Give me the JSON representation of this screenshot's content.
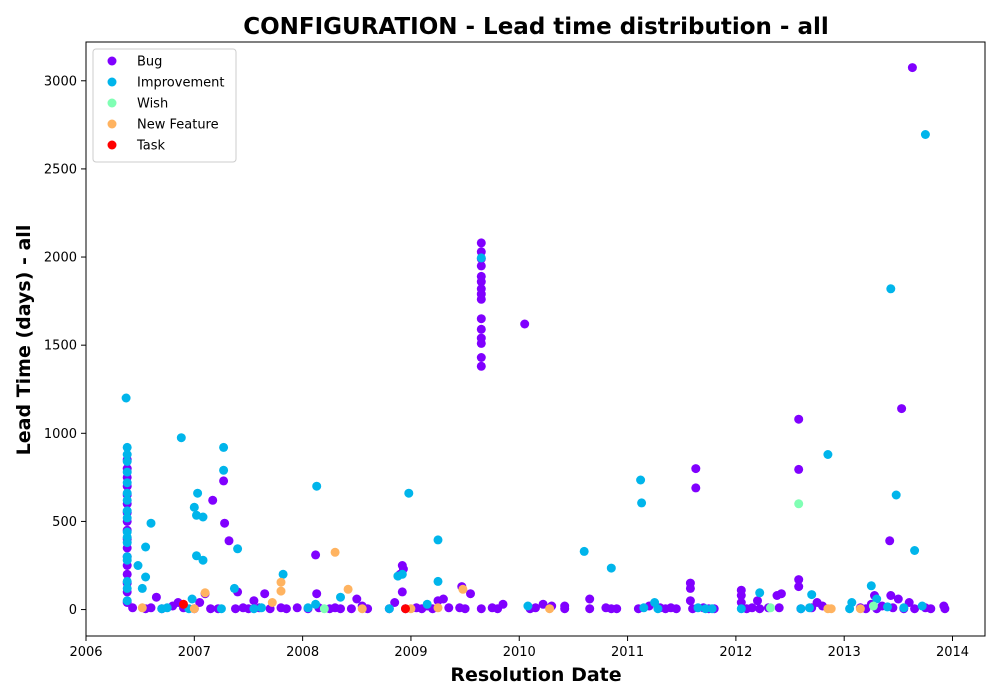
{
  "chart_data": {
    "type": "scatter",
    "title": "CONFIGURATION - Lead time distribution - all",
    "xlabel": "Resolution Date",
    "ylabel": "Lead Time (days) - all",
    "xlim": [
      2006.0,
      2014.3
    ],
    "ylim": [
      -150,
      3220
    ],
    "x_ticks": [
      "2006",
      "2007",
      "2008",
      "2009",
      "2010",
      "2011",
      "2012",
      "2013",
      "2014"
    ],
    "y_ticks": [
      "0",
      "500",
      "1000",
      "1500",
      "2000",
      "2500",
      "3000"
    ],
    "grid": false,
    "legend_position": "top-left",
    "series": [
      {
        "name": "Bug",
        "color": "#8000ff",
        "points": [
          [
            2006.38,
            40
          ],
          [
            2006.38,
            100
          ],
          [
            2006.38,
            150
          ],
          [
            2006.38,
            200
          ],
          [
            2006.38,
            250
          ],
          [
            2006.38,
            300
          ],
          [
            2006.38,
            350
          ],
          [
            2006.38,
            400
          ],
          [
            2006.38,
            450
          ],
          [
            2006.38,
            500
          ],
          [
            2006.38,
            550
          ],
          [
            2006.38,
            600
          ],
          [
            2006.38,
            650
          ],
          [
            2006.38,
            700
          ],
          [
            2006.38,
            750
          ],
          [
            2006.38,
            800
          ],
          [
            2006.38,
            850
          ],
          [
            2006.43,
            10
          ],
          [
            2006.55,
            5
          ],
          [
            2006.6,
            10
          ],
          [
            2006.65,
            70
          ],
          [
            2006.7,
            5
          ],
          [
            2006.8,
            20
          ],
          [
            2006.85,
            40
          ],
          [
            2006.9,
            10
          ],
          [
            2007.0,
            5
          ],
          [
            2007.05,
            40
          ],
          [
            2007.1,
            90
          ],
          [
            2007.15,
            5
          ],
          [
            2007.17,
            620
          ],
          [
            2007.22,
            5
          ],
          [
            2007.27,
            730
          ],
          [
            2007.28,
            490
          ],
          [
            2007.32,
            390
          ],
          [
            2007.38,
            5
          ],
          [
            2007.4,
            100
          ],
          [
            2007.45,
            10
          ],
          [
            2007.5,
            5
          ],
          [
            2007.55,
            50
          ],
          [
            2007.6,
            10
          ],
          [
            2007.65,
            90
          ],
          [
            2007.7,
            5
          ],
          [
            2007.8,
            10
          ],
          [
            2007.85,
            5
          ],
          [
            2007.95,
            10
          ],
          [
            2008.05,
            5
          ],
          [
            2008.12,
            310
          ],
          [
            2008.13,
            90
          ],
          [
            2008.15,
            10
          ],
          [
            2008.25,
            5
          ],
          [
            2008.3,
            10
          ],
          [
            2008.35,
            5
          ],
          [
            2008.45,
            5
          ],
          [
            2008.5,
            60
          ],
          [
            2008.55,
            20
          ],
          [
            2008.6,
            5
          ],
          [
            2008.8,
            5
          ],
          [
            2008.85,
            40
          ],
          [
            2008.9,
            200
          ],
          [
            2008.92,
            250
          ],
          [
            2008.93,
            230
          ],
          [
            2008.92,
            100
          ],
          [
            2008.95,
            5
          ],
          [
            2009.05,
            10
          ],
          [
            2009.1,
            5
          ],
          [
            2009.15,
            20
          ],
          [
            2009.2,
            5
          ],
          [
            2009.25,
            50
          ],
          [
            2009.3,
            60
          ],
          [
            2009.35,
            10
          ],
          [
            2009.45,
            10
          ],
          [
            2009.47,
            130
          ],
          [
            2009.5,
            5
          ],
          [
            2009.55,
            90
          ],
          [
            2009.65,
            1380
          ],
          [
            2009.65,
            1430
          ],
          [
            2009.65,
            1510
          ],
          [
            2009.65,
            1540
          ],
          [
            2009.65,
            1590
          ],
          [
            2009.65,
            1650
          ],
          [
            2009.65,
            1760
          ],
          [
            2009.65,
            1790
          ],
          [
            2009.65,
            1820
          ],
          [
            2009.65,
            1860
          ],
          [
            2009.65,
            1890
          ],
          [
            2009.65,
            1950
          ],
          [
            2009.65,
            1990
          ],
          [
            2009.65,
            2030
          ],
          [
            2009.65,
            2080
          ],
          [
            2009.65,
            5
          ],
          [
            2009.75,
            10
          ],
          [
            2009.8,
            5
          ],
          [
            2009.85,
            30
          ],
          [
            2010.05,
            1620
          ],
          [
            2010.1,
            5
          ],
          [
            2010.15,
            10
          ],
          [
            2010.22,
            30
          ],
          [
            2010.3,
            20
          ],
          [
            2010.42,
            5
          ],
          [
            2010.42,
            20
          ],
          [
            2010.65,
            5
          ],
          [
            2010.65,
            60
          ],
          [
            2010.8,
            10
          ],
          [
            2010.85,
            5
          ],
          [
            2010.9,
            5
          ],
          [
            2011.1,
            5
          ],
          [
            2011.2,
            20
          ],
          [
            2011.3,
            10
          ],
          [
            2011.35,
            5
          ],
          [
            2011.4,
            10
          ],
          [
            2011.45,
            5
          ],
          [
            2011.58,
            150
          ],
          [
            2011.58,
            120
          ],
          [
            2011.58,
            50
          ],
          [
            2011.6,
            5
          ],
          [
            2011.63,
            800
          ],
          [
            2011.63,
            690
          ],
          [
            2011.7,
            10
          ],
          [
            2011.75,
            5
          ],
          [
            2011.8,
            5
          ],
          [
            2012.05,
            110
          ],
          [
            2012.05,
            80
          ],
          [
            2012.05,
            40
          ],
          [
            2012.1,
            5
          ],
          [
            2012.15,
            10
          ],
          [
            2012.2,
            50
          ],
          [
            2012.22,
            5
          ],
          [
            2012.3,
            10
          ],
          [
            2012.38,
            80
          ],
          [
            2012.42,
            90
          ],
          [
            2012.4,
            10
          ],
          [
            2012.58,
            1080
          ],
          [
            2012.58,
            795
          ],
          [
            2012.58,
            170
          ],
          [
            2012.58,
            130
          ],
          [
            2012.6,
            5
          ],
          [
            2012.7,
            10
          ],
          [
            2012.75,
            40
          ],
          [
            2012.8,
            20
          ],
          [
            2013.15,
            10
          ],
          [
            2013.2,
            5
          ],
          [
            2013.25,
            30
          ],
          [
            2013.28,
            80
          ],
          [
            2013.3,
            5
          ],
          [
            2013.35,
            20
          ],
          [
            2013.42,
            390
          ],
          [
            2013.43,
            80
          ],
          [
            2013.45,
            10
          ],
          [
            2013.5,
            60
          ],
          [
            2013.53,
            1140
          ],
          [
            2013.55,
            5
          ],
          [
            2013.6,
            40
          ],
          [
            2013.63,
            3075
          ],
          [
            2013.65,
            5
          ],
          [
            2013.75,
            10
          ],
          [
            2013.8,
            5
          ],
          [
            2013.92,
            20
          ],
          [
            2013.93,
            5
          ]
        ]
      },
      {
        "name": "Improvement",
        "color": "#00b5eb",
        "points": [
          [
            2006.37,
            1200
          ],
          [
            2006.38,
            920
          ],
          [
            2006.38,
            880
          ],
          [
            2006.38,
            840
          ],
          [
            2006.38,
            780
          ],
          [
            2006.38,
            720
          ],
          [
            2006.38,
            660
          ],
          [
            2006.38,
            620
          ],
          [
            2006.38,
            560
          ],
          [
            2006.38,
            520
          ],
          [
            2006.38,
            440
          ],
          [
            2006.38,
            410
          ],
          [
            2006.38,
            380
          ],
          [
            2006.38,
            300
          ],
          [
            2006.38,
            280
          ],
          [
            2006.38,
            160
          ],
          [
            2006.38,
            120
          ],
          [
            2006.38,
            50
          ],
          [
            2006.48,
            250
          ],
          [
            2006.52,
            120
          ],
          [
            2006.55,
            185
          ],
          [
            2006.55,
            355
          ],
          [
            2006.6,
            490
          ],
          [
            2006.7,
            5
          ],
          [
            2006.75,
            10
          ],
          [
            2006.88,
            975
          ],
          [
            2006.95,
            5
          ],
          [
            2006.98,
            60
          ],
          [
            2007.0,
            580
          ],
          [
            2007.02,
            535
          ],
          [
            2007.03,
            660
          ],
          [
            2007.02,
            305
          ],
          [
            2007.08,
            525
          ],
          [
            2007.08,
            280
          ],
          [
            2007.25,
            5
          ],
          [
            2007.27,
            920
          ],
          [
            2007.27,
            790
          ],
          [
            2007.37,
            120
          ],
          [
            2007.4,
            345
          ],
          [
            2007.55,
            5
          ],
          [
            2007.62,
            10
          ],
          [
            2007.82,
            200
          ],
          [
            2008.05,
            10
          ],
          [
            2008.13,
            700
          ],
          [
            2008.12,
            30
          ],
          [
            2008.35,
            70
          ],
          [
            2008.8,
            5
          ],
          [
            2008.88,
            190
          ],
          [
            2008.92,
            200
          ],
          [
            2008.98,
            660
          ],
          [
            2009.15,
            30
          ],
          [
            2009.25,
            395
          ],
          [
            2009.25,
            160
          ],
          [
            2009.65,
            1995
          ],
          [
            2010.08,
            20
          ],
          [
            2010.6,
            330
          ],
          [
            2010.85,
            235
          ],
          [
            2011.12,
            735
          ],
          [
            2011.13,
            605
          ],
          [
            2011.15,
            10
          ],
          [
            2011.25,
            40
          ],
          [
            2011.28,
            5
          ],
          [
            2011.65,
            10
          ],
          [
            2011.72,
            5
          ],
          [
            2011.78,
            5
          ],
          [
            2012.05,
            5
          ],
          [
            2012.22,
            95
          ],
          [
            2012.85,
            880
          ],
          [
            2012.7,
            85
          ],
          [
            2012.6,
            5
          ],
          [
            2012.68,
            10
          ],
          [
            2013.05,
            5
          ],
          [
            2013.07,
            40
          ],
          [
            2013.25,
            135
          ],
          [
            2013.3,
            60
          ],
          [
            2013.43,
            1820
          ],
          [
            2013.48,
            650
          ],
          [
            2013.65,
            335
          ],
          [
            2013.72,
            20
          ],
          [
            2013.75,
            2695
          ],
          [
            2013.55,
            10
          ],
          [
            2013.4,
            15
          ]
        ]
      },
      {
        "name": "Wish",
        "color": "#80ffb4",
        "points": [
          [
            2008.2,
            5
          ],
          [
            2012.58,
            600
          ],
          [
            2013.27,
            20
          ],
          [
            2012.32,
            10
          ]
        ]
      },
      {
        "name": "New Feature",
        "color": "#ffb360",
        "points": [
          [
            2006.52,
            10
          ],
          [
            2007.0,
            5
          ],
          [
            2007.1,
            95
          ],
          [
            2007.72,
            40
          ],
          [
            2007.8,
            105
          ],
          [
            2007.8,
            155
          ],
          [
            2008.3,
            325
          ],
          [
            2008.42,
            115
          ],
          [
            2008.55,
            5
          ],
          [
            2009.0,
            5
          ],
          [
            2009.25,
            10
          ],
          [
            2009.48,
            115
          ],
          [
            2010.28,
            5
          ],
          [
            2012.85,
            5
          ],
          [
            2012.88,
            5
          ],
          [
            2013.15,
            5
          ]
        ]
      },
      {
        "name": "Task",
        "color": "#ff0000",
        "points": [
          [
            2006.9,
            30
          ],
          [
            2008.95,
            5
          ]
        ]
      }
    ]
  }
}
